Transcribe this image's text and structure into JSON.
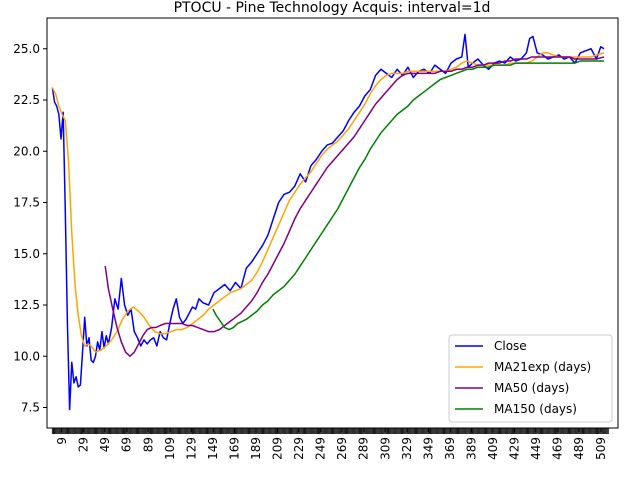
{
  "chart_data": {
    "type": "line",
    "title": "PTOCU - Pine Technology Acquis: interval=1d",
    "xlabel": "",
    "ylabel": "",
    "xlim": [
      -5,
      525
    ],
    "ylim": [
      6.5,
      26.5
    ],
    "xticks": [
      9,
      29,
      49,
      69,
      89,
      109,
      129,
      149,
      169,
      189,
      209,
      229,
      249,
      269,
      289,
      309,
      329,
      349,
      369,
      389,
      409,
      429,
      449,
      469,
      489,
      509
    ],
    "yticks": [
      7.5,
      10.0,
      12.5,
      15.0,
      17.5,
      20.0,
      22.5,
      25.0
    ],
    "ytick_labels": [
      "7.5",
      "10.0",
      "12.5",
      "15.0",
      "17.5",
      "20.0",
      "22.5",
      "25.0"
    ],
    "minor_xticks": {
      "start": 0,
      "end": 516,
      "step": 1
    },
    "grid": false,
    "legend_position": "lower-right",
    "series": [
      {
        "name": "Close",
        "color": "#0000ff",
        "x": [
          0,
          2,
          4,
          6,
          8,
          10,
          12,
          14,
          16,
          18,
          20,
          22,
          24,
          26,
          28,
          30,
          32,
          34,
          36,
          38,
          40,
          42,
          44,
          46,
          48,
          50,
          52,
          55,
          58,
          61,
          64,
          67,
          70,
          73,
          76,
          79,
          82,
          85,
          88,
          91,
          94,
          97,
          100,
          103,
          106,
          109,
          112,
          115,
          118,
          121,
          124,
          127,
          130,
          133,
          136,
          140,
          145,
          150,
          155,
          160,
          165,
          170,
          175,
          180,
          185,
          190,
          195,
          200,
          205,
          210,
          215,
          220,
          225,
          230,
          235,
          240,
          245,
          250,
          255,
          260,
          265,
          270,
          275,
          280,
          285,
          290,
          295,
          300,
          305,
          310,
          315,
          320,
          325,
          330,
          335,
          340,
          345,
          350,
          355,
          360,
          365,
          370,
          375,
          380,
          383,
          386,
          390,
          395,
          400,
          405,
          410,
          415,
          420,
          425,
          430,
          435,
          440,
          443,
          446,
          450,
          455,
          460,
          465,
          470,
          475,
          480,
          485,
          490,
          495,
          500,
          505,
          509,
          512
        ],
        "values": [
          23.1,
          22.4,
          22.2,
          21.8,
          20.6,
          21.9,
          17.0,
          11.5,
          7.4,
          9.7,
          8.7,
          9.0,
          8.5,
          8.6,
          10.2,
          11.9,
          10.5,
          10.9,
          9.8,
          9.7,
          10.0,
          10.7,
          10.3,
          11.2,
          10.4,
          11.0,
          10.6,
          11.4,
          12.8,
          12.3,
          13.8,
          12.5,
          12.0,
          12.3,
          11.2,
          10.9,
          10.5,
          10.8,
          10.6,
          10.8,
          10.9,
          10.5,
          11.2,
          10.9,
          10.8,
          11.6,
          12.3,
          12.8,
          11.9,
          11.6,
          11.8,
          12.1,
          12.4,
          12.3,
          12.8,
          12.6,
          12.5,
          13.1,
          13.3,
          13.5,
          13.2,
          13.6,
          13.3,
          14.3,
          14.6,
          15.0,
          15.4,
          15.9,
          16.7,
          17.5,
          17.9,
          18.0,
          18.3,
          18.9,
          18.5,
          19.3,
          19.6,
          20.0,
          20.3,
          20.4,
          20.7,
          21.0,
          21.5,
          21.9,
          22.2,
          22.7,
          23.0,
          23.7,
          24.0,
          23.8,
          23.6,
          24.0,
          23.7,
          24.1,
          23.6,
          23.9,
          24.0,
          23.8,
          24.2,
          24.0,
          23.8,
          24.3,
          24.5,
          24.6,
          25.7,
          24.1,
          24.3,
          24.5,
          24.2,
          24.0,
          24.3,
          24.4,
          24.3,
          24.6,
          24.4,
          24.5,
          24.8,
          25.5,
          25.6,
          24.8,
          24.7,
          24.5,
          24.6,
          24.7,
          24.5,
          24.6,
          24.3,
          24.8,
          24.9,
          25.0,
          24.5,
          25.1,
          25.0
        ]
      },
      {
        "name": "MA21exp (days)",
        "color": "#ffa500",
        "x": [
          0,
          3,
          6,
          9,
          12,
          15,
          18,
          21,
          24,
          27,
          30,
          33,
          36,
          40,
          45,
          50,
          55,
          60,
          65,
          70,
          75,
          80,
          85,
          90,
          95,
          100,
          105,
          110,
          115,
          120,
          125,
          130,
          135,
          140,
          145,
          150,
          155,
          160,
          165,
          170,
          175,
          180,
          185,
          190,
          195,
          200,
          205,
          210,
          215,
          220,
          225,
          230,
          235,
          240,
          245,
          250,
          255,
          260,
          265,
          270,
          275,
          280,
          285,
          290,
          295,
          300,
          305,
          310,
          315,
          320,
          325,
          330,
          335,
          340,
          345,
          350,
          355,
          360,
          365,
          370,
          375,
          380,
          385,
          390,
          395,
          400,
          405,
          410,
          415,
          420,
          425,
          430,
          435,
          440,
          445,
          450,
          455,
          460,
          465,
          470,
          475,
          480,
          485,
          490,
          495,
          500,
          505,
          512
        ],
        "values": [
          23.1,
          22.8,
          22.2,
          21.8,
          21.5,
          19.5,
          16.0,
          13.5,
          12.0,
          11.0,
          10.5,
          10.6,
          10.5,
          10.2,
          10.3,
          10.5,
          10.8,
          11.2,
          11.8,
          12.2,
          12.4,
          12.2,
          11.9,
          11.5,
          11.2,
          11.1,
          11.1,
          11.2,
          11.3,
          11.3,
          11.4,
          11.6,
          11.8,
          12.0,
          12.3,
          12.5,
          12.7,
          12.9,
          13.1,
          13.2,
          13.3,
          13.5,
          13.7,
          14.1,
          14.6,
          15.2,
          15.8,
          16.4,
          17.0,
          17.6,
          18.0,
          18.4,
          18.7,
          19.0,
          19.4,
          19.8,
          20.1,
          20.3,
          20.5,
          20.8,
          21.1,
          21.5,
          21.9,
          22.3,
          22.8,
          23.2,
          23.5,
          23.7,
          23.8,
          23.8,
          23.8,
          23.9,
          23.9,
          23.9,
          23.9,
          23.9,
          23.9,
          23.9,
          23.9,
          24.0,
          24.1,
          24.3,
          24.4,
          24.3,
          24.2,
          24.2,
          24.2,
          24.2,
          24.2,
          24.2,
          24.3,
          24.3,
          24.3,
          24.3,
          24.4,
          24.6,
          24.8,
          24.8,
          24.7,
          24.6,
          24.6,
          24.6,
          24.6,
          24.6,
          24.6,
          24.6,
          24.7,
          24.8
        ]
      },
      {
        "name": "MA50 (days)",
        "color": "#800080",
        "x": [
          49,
          52,
          56,
          60,
          64,
          68,
          72,
          76,
          80,
          84,
          88,
          92,
          96,
          100,
          105,
          110,
          115,
          120,
          125,
          130,
          135,
          140,
          145,
          150,
          155,
          160,
          165,
          170,
          175,
          180,
          185,
          190,
          195,
          200,
          205,
          210,
          215,
          220,
          225,
          230,
          235,
          240,
          245,
          250,
          255,
          260,
          265,
          270,
          275,
          280,
          285,
          290,
          295,
          300,
          305,
          310,
          315,
          320,
          325,
          330,
          335,
          340,
          345,
          350,
          355,
          360,
          365,
          370,
          375,
          380,
          385,
          390,
          395,
          400,
          405,
          410,
          415,
          420,
          425,
          430,
          435,
          440,
          445,
          450,
          455,
          460,
          465,
          470,
          475,
          480,
          485,
          490,
          495,
          500,
          505,
          512
        ],
        "values": [
          14.4,
          13.3,
          12.3,
          11.4,
          10.7,
          10.2,
          10.0,
          10.2,
          10.6,
          11.0,
          11.3,
          11.4,
          11.4,
          11.5,
          11.6,
          11.6,
          11.6,
          11.6,
          11.5,
          11.5,
          11.4,
          11.3,
          11.2,
          11.2,
          11.3,
          11.5,
          11.7,
          11.9,
          12.1,
          12.4,
          12.7,
          13.1,
          13.6,
          14.0,
          14.5,
          15.0,
          15.5,
          16.1,
          16.7,
          17.2,
          17.6,
          18.0,
          18.4,
          18.8,
          19.2,
          19.5,
          19.8,
          20.1,
          20.4,
          20.7,
          21.1,
          21.5,
          21.9,
          22.3,
          22.6,
          22.9,
          23.2,
          23.5,
          23.7,
          23.8,
          23.8,
          23.8,
          23.8,
          23.8,
          23.8,
          23.9,
          23.9,
          23.9,
          24.0,
          24.0,
          24.1,
          24.1,
          24.2,
          24.2,
          24.3,
          24.3,
          24.3,
          24.4,
          24.4,
          24.5,
          24.5,
          24.5,
          24.6,
          24.6,
          24.6,
          24.6,
          24.6,
          24.6,
          24.6,
          24.6,
          24.5,
          24.5,
          24.5,
          24.5,
          24.5,
          24.6
        ]
      },
      {
        "name": "MA150 (days)",
        "color": "#008000",
        "x": [
          149,
          152,
          156,
          160,
          164,
          168,
          172,
          176,
          180,
          185,
          190,
          195,
          200,
          205,
          210,
          215,
          220,
          225,
          230,
          235,
          240,
          245,
          250,
          255,
          260,
          265,
          270,
          275,
          280,
          285,
          290,
          295,
          300,
          305,
          310,
          315,
          320,
          325,
          330,
          335,
          340,
          345,
          350,
          355,
          360,
          365,
          370,
          375,
          380,
          385,
          390,
          395,
          400,
          405,
          410,
          415,
          420,
          425,
          430,
          435,
          440,
          445,
          450,
          455,
          460,
          465,
          470,
          475,
          480,
          485,
          490,
          495,
          500,
          505,
          512
        ],
        "values": [
          12.3,
          12.0,
          11.7,
          11.4,
          11.3,
          11.4,
          11.6,
          11.7,
          11.8,
          12.0,
          12.2,
          12.5,
          12.7,
          13.0,
          13.2,
          13.4,
          13.7,
          14.0,
          14.4,
          14.8,
          15.2,
          15.6,
          16.0,
          16.4,
          16.8,
          17.2,
          17.7,
          18.2,
          18.7,
          19.2,
          19.6,
          20.1,
          20.5,
          20.9,
          21.2,
          21.5,
          21.8,
          22.0,
          22.2,
          22.5,
          22.7,
          22.9,
          23.1,
          23.3,
          23.5,
          23.6,
          23.7,
          23.8,
          23.9,
          24.0,
          24.0,
          24.1,
          24.1,
          24.1,
          24.2,
          24.2,
          24.2,
          24.2,
          24.3,
          24.3,
          24.3,
          24.3,
          24.3,
          24.3,
          24.3,
          24.3,
          24.3,
          24.3,
          24.3,
          24.3,
          24.4,
          24.4,
          24.4,
          24.4,
          24.4
        ]
      }
    ]
  }
}
